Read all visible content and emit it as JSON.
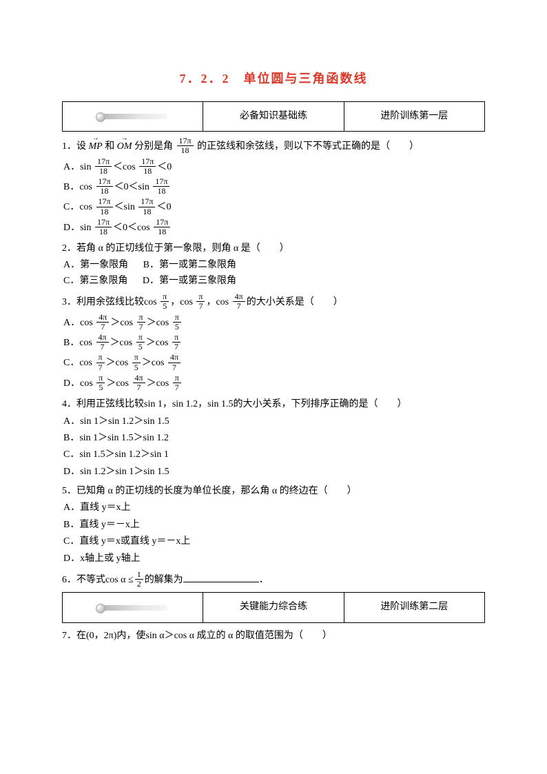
{
  "title": "7．2．2　单位圆与三角函数线",
  "bar1": {
    "c2": "必备知识基础练",
    "c3": "进阶训练第一层"
  },
  "bar2": {
    "c2": "关键能力综合练",
    "c3": "进阶训练第二层"
  },
  "pi": "π",
  "q1": {
    "stem_a": "1．设",
    "vec1": "MP",
    "stem_b": "和",
    "vec2": "OM",
    "stem_c": "分别是角",
    "frac_num": "17π",
    "frac_den": "18",
    "stem_d": "的正弦线和余弦线，则以下不等式正确的是（　　）",
    "A_pre": "A．sin ",
    "B_pre": "B．cos ",
    "C_pre": "C．cos ",
    "D_pre": "D．sin ",
    "lt_cos": "＜cos ",
    "lt_sin": "＜sin ",
    "lt0": "＜0",
    "lt0lt_sin": "＜0＜sin ",
    "lt0lt_cos": "＜0＜cos "
  },
  "q2": {
    "stem": "2．若角 α 的正切线位于第一象限，则角 α 是（　　）",
    "A": "A．第一象限角",
    "B": "B．第一或第二象限角",
    "C": "C．第三象限角",
    "D": "D．第一或第三象限角"
  },
  "q3": {
    "stem_a": "3．利用余弦线比较cos ",
    "comma": "，cos ",
    "stem_b": "的大小关系是（　　）",
    "f1n": "π",
    "f1d": "5",
    "f2n": "π",
    "f2d": "7",
    "f3n": "4π",
    "f3d": "7",
    "A": "A．cos ",
    "B": "B．cos ",
    "C": "C．cos ",
    "D": "D．cos ",
    "gt_cos": "＞cos "
  },
  "q4": {
    "stem": "4．利用正弦线比较sin 1，sin 1.2，sin 1.5的大小关系，下列排序正确的是（　　）",
    "A": "A．sin 1＞sin 1.2＞sin 1.5",
    "B": "B．sin 1＞sin 1.5＞sin 1.2",
    "C": "C．sin 1.5＞sin 1.2＞sin 1",
    "D": "D．sin 1.2＞sin 1＞sin 1.5"
  },
  "q5": {
    "stem": "5．已知角 α 的正切线的长度为单位长度，那么角 α 的终边在（　　）",
    "A": "A．直线 y＝x上",
    "B": "B．直线 y＝－x上",
    "C": "C．直线 y＝x或直线 y＝－x上",
    "D": "D．x轴上或 y轴上"
  },
  "q6": {
    "stem_a": "6．不等式cos  α ≤",
    "fn": "1",
    "fd": "2",
    "stem_b": "的解集为",
    "stem_c": "．"
  },
  "q7": {
    "stem": "7．在(0，2π)内，使sin  α＞cos  α 成立的 α 的取值范围为（　　）"
  },
  "colors": {
    "title": "#d83a2a",
    "text": "#000000",
    "bg": "#ffffff"
  }
}
